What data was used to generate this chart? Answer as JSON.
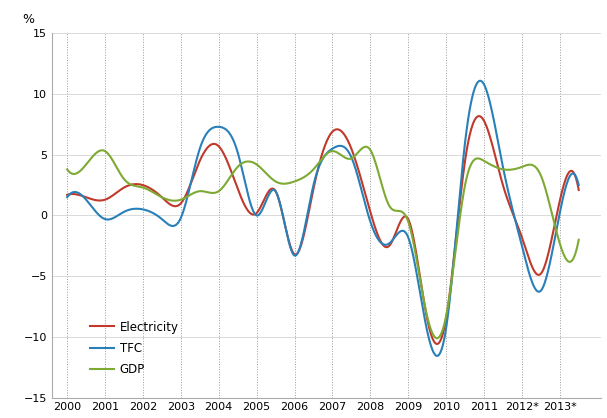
{
  "years": [
    2000.0,
    2000.5,
    2001.0,
    2001.5,
    2002.0,
    2002.5,
    2003.0,
    2003.5,
    2004.0,
    2004.5,
    2005.0,
    2005.5,
    2006.0,
    2006.5,
    2007.0,
    2007.5,
    2008.0,
    2008.5,
    2009.0,
    2009.5,
    2010.0,
    2010.5,
    2011.0,
    2011.5,
    2012.0,
    2012.5,
    2013.0,
    2013.5
  ],
  "electricity": [
    1.7,
    1.5,
    1.3,
    2.3,
    2.5,
    1.5,
    1.0,
    4.5,
    5.7,
    2.2,
    0.2,
    2.0,
    -3.2,
    2.2,
    6.9,
    5.5,
    0.3,
    -2.5,
    -0.3,
    -8.5,
    -8.5,
    4.5,
    7.8,
    2.5,
    -1.8,
    -4.8,
    1.2,
    2.1
  ],
  "tfc": [
    1.5,
    1.3,
    -0.3,
    0.3,
    0.5,
    -0.3,
    -0.2,
    5.5,
    7.3,
    5.2,
    0.0,
    2.0,
    -3.3,
    2.5,
    5.5,
    4.8,
    -0.5,
    -2.3,
    -1.8,
    -9.5,
    -9.3,
    6.0,
    10.8,
    4.0,
    -2.5,
    -6.2,
    0.2,
    2.5
  ],
  "gdp": [
    3.8,
    4.2,
    5.3,
    3.0,
    2.3,
    1.5,
    1.3,
    2.0,
    2.0,
    4.0,
    4.2,
    2.8,
    2.8,
    3.8,
    5.3,
    4.7,
    5.4,
    0.8,
    -0.5,
    -8.3,
    -8.3,
    2.5,
    4.5,
    3.8,
    4.0,
    3.3,
    -2.3,
    -2.0
  ],
  "color_electricity": "#c0392b",
  "color_tfc": "#2980b9",
  "color_gdp": "#7daa33",
  "ylabel": "%",
  "ylim": [
    -15,
    15
  ],
  "yticks": [
    -15,
    -10,
    -5,
    0,
    5,
    10,
    15
  ],
  "xlim": [
    1999.6,
    2014.1
  ],
  "xtick_labels": [
    "2000",
    "2001",
    "2002",
    "2003",
    "2004",
    "2005",
    "2006",
    "2007",
    "2008",
    "2009",
    "2010",
    "2011",
    "2012*",
    "2013*"
  ],
  "xtick_positions": [
    2000,
    2001,
    2002,
    2003,
    2004,
    2005,
    2006,
    2007,
    2008,
    2009,
    2010,
    2011,
    2012,
    2013
  ],
  "legend_electricity": "Electricity",
  "legend_tfc": "TFC",
  "legend_gdp": "GDP",
  "line_width": 1.5,
  "background_color": "#ffffff",
  "grid_color": "#aaaaaa"
}
